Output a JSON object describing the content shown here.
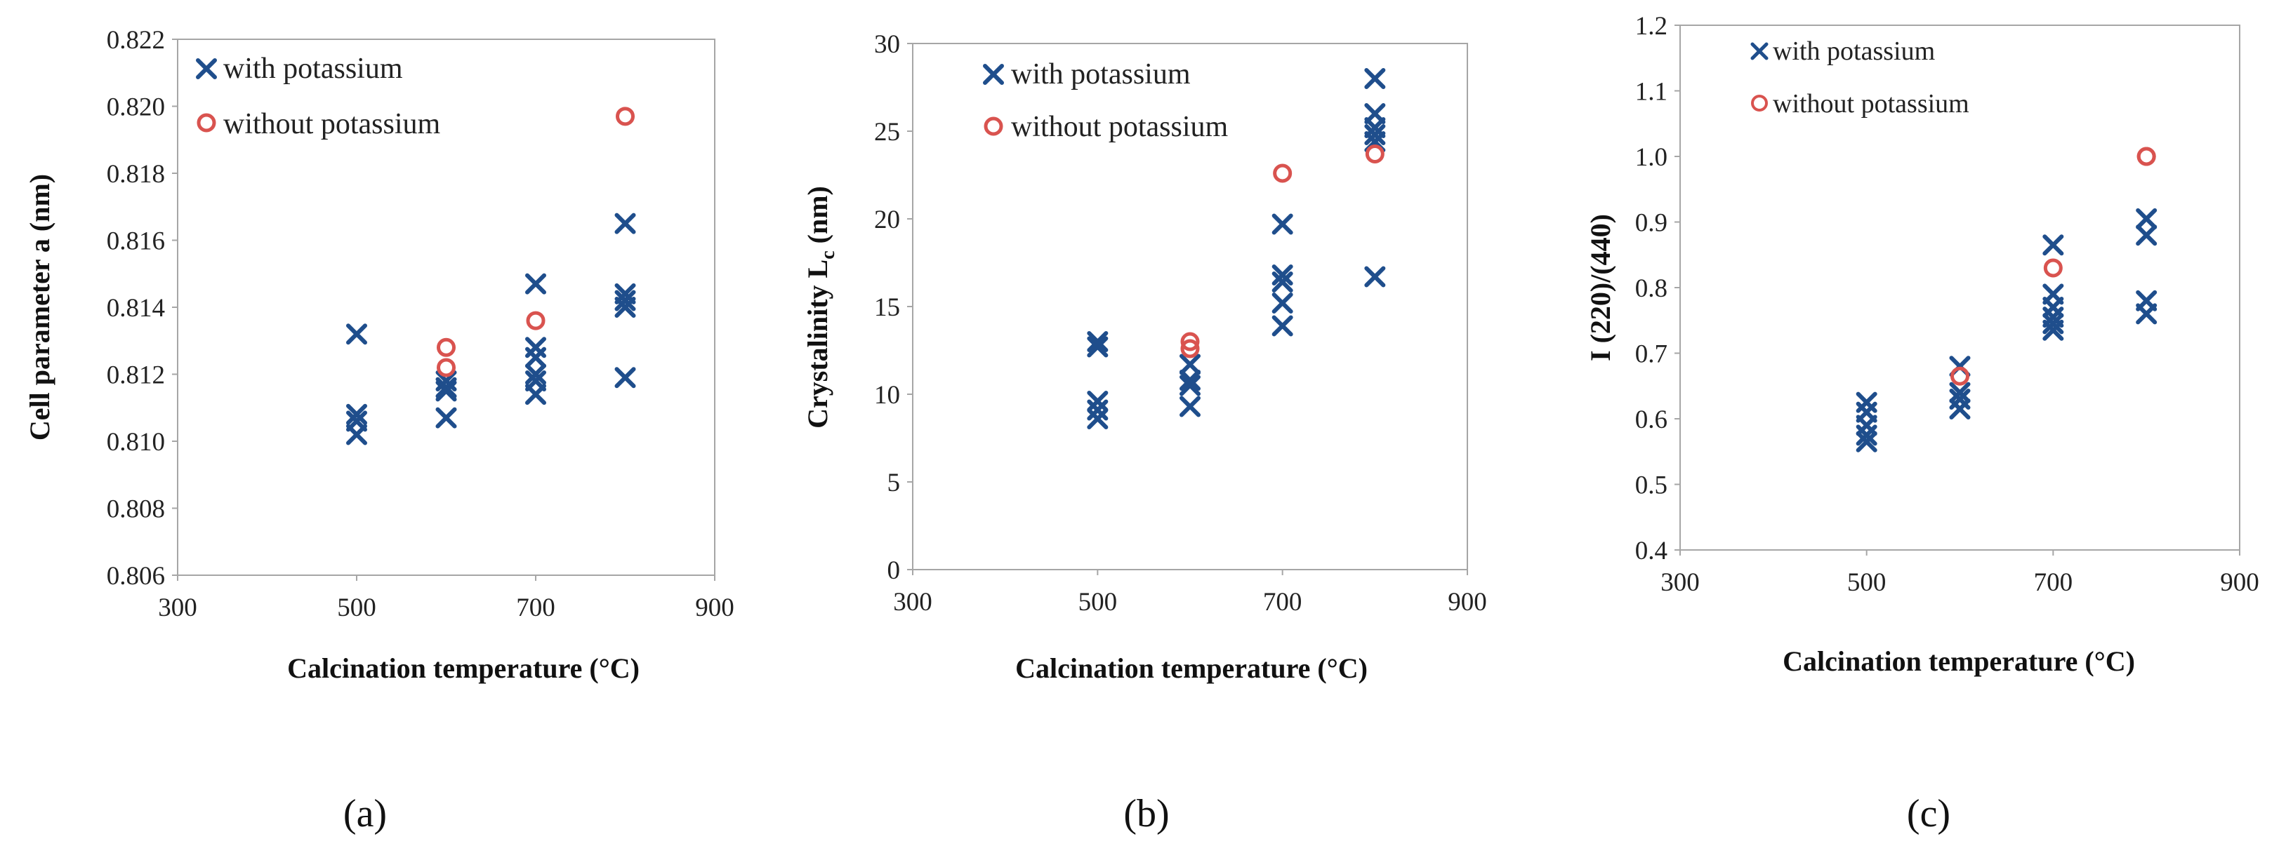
{
  "chart_data": [
    {
      "type": "scatter",
      "panel_label": "(a)",
      "xlabel": "Calcination temperature (°C)",
      "ylabel": "Cell parameter a (nm)",
      "xlim": [
        300,
        900
      ],
      "ylim": [
        0.806,
        0.822
      ],
      "xticks": [
        "300",
        "500",
        "700",
        "900"
      ],
      "yticks": [
        "0.806",
        "0.808",
        "0.810",
        "0.812",
        "0.814",
        "0.816",
        "0.818",
        "0.820",
        "0.822"
      ],
      "legend_position": "top-left",
      "series": [
        {
          "name": "with potassium",
          "marker": "x",
          "color": "#1f4e8c",
          "points": [
            [
              500,
              0.8132
            ],
            [
              500,
              0.8108
            ],
            [
              500,
              0.8106
            ],
            [
              500,
              0.8102
            ],
            [
              600,
              0.8118
            ],
            [
              600,
              0.8116
            ],
            [
              600,
              0.8115
            ],
            [
              600,
              0.8107
            ],
            [
              700,
              0.8147
            ],
            [
              700,
              0.8128
            ],
            [
              700,
              0.8125
            ],
            [
              700,
              0.812
            ],
            [
              700,
              0.8118
            ],
            [
              700,
              0.8114
            ],
            [
              800,
              0.8165
            ],
            [
              800,
              0.8144
            ],
            [
              800,
              0.8142
            ],
            [
              800,
              0.814
            ],
            [
              800,
              0.8119
            ]
          ]
        },
        {
          "name": "without potassium",
          "marker": "o",
          "color": "#d9534f",
          "points": [
            [
              600,
              0.8128
            ],
            [
              600,
              0.8122
            ],
            [
              700,
              0.8136
            ],
            [
              800,
              0.8197
            ]
          ]
        }
      ]
    },
    {
      "type": "scatter",
      "panel_label": "(b)",
      "xlabel": "Calcination temperature (°C)",
      "ylabel": "Crystalinity L",
      "ylabel_subscript": "c",
      "ylabel_suffix": " (nm)",
      "xlim": [
        300,
        900
      ],
      "ylim": [
        0,
        30
      ],
      "xticks": [
        "300",
        "500",
        "700",
        "900"
      ],
      "yticks": [
        "0",
        "5",
        "10",
        "15",
        "20",
        "25",
        "30"
      ],
      "legend_position": "top-left",
      "series": [
        {
          "name": "with potassium",
          "marker": "x",
          "color": "#1f4e8c",
          "points": [
            [
              500,
              13.0
            ],
            [
              500,
              12.7
            ],
            [
              500,
              9.6
            ],
            [
              500,
              9.1
            ],
            [
              500,
              8.6
            ],
            [
              600,
              11.7
            ],
            [
              600,
              10.8
            ],
            [
              600,
              10.5
            ],
            [
              600,
              9.3
            ],
            [
              700,
              19.7
            ],
            [
              700,
              16.8
            ],
            [
              700,
              16.4
            ],
            [
              700,
              15.2
            ],
            [
              700,
              13.9
            ],
            [
              800,
              28.0
            ],
            [
              800,
              26.0
            ],
            [
              800,
              25.2
            ],
            [
              800,
              24.8
            ],
            [
              800,
              24.4
            ],
            [
              800,
              16.7
            ]
          ]
        },
        {
          "name": "without potassium",
          "marker": "o",
          "color": "#d9534f",
          "points": [
            [
              600,
              13.0
            ],
            [
              600,
              12.6
            ],
            [
              700,
              22.6
            ],
            [
              800,
              23.7
            ]
          ]
        }
      ]
    },
    {
      "type": "scatter",
      "panel_label": "(c)",
      "xlabel": "Calcination temperature (°C)",
      "ylabel": "I (220)/(440)",
      "xlim": [
        300,
        900
      ],
      "ylim": [
        0.4,
        1.2
      ],
      "xticks": [
        "300",
        "500",
        "700",
        "900"
      ],
      "yticks": [
        "0.4",
        "0.5",
        "0.6",
        "0.7",
        "0.8",
        "0.9",
        "1.0",
        "1.1",
        "1.2"
      ],
      "legend_position": "top-left",
      "series": [
        {
          "name": "with potassium",
          "marker": "x",
          "color": "#1f4e8c",
          "points": [
            [
              500,
              0.625
            ],
            [
              500,
              0.61
            ],
            [
              500,
              0.59
            ],
            [
              500,
              0.575
            ],
            [
              500,
              0.565
            ],
            [
              600,
              0.68
            ],
            [
              600,
              0.64
            ],
            [
              600,
              0.63
            ],
            [
              600,
              0.615
            ],
            [
              700,
              0.865
            ],
            [
              700,
              0.79
            ],
            [
              700,
              0.77
            ],
            [
              700,
              0.755
            ],
            [
              700,
              0.745
            ],
            [
              700,
              0.735
            ],
            [
              800,
              0.905
            ],
            [
              800,
              0.88
            ],
            [
              800,
              0.78
            ],
            [
              800,
              0.76
            ]
          ]
        },
        {
          "name": "without potassium",
          "marker": "o",
          "color": "#d9534f",
          "points": [
            [
              600,
              0.665
            ],
            [
              700,
              0.83
            ],
            [
              800,
              1.0
            ],
            [
              800,
              1.0
            ]
          ]
        }
      ]
    }
  ]
}
